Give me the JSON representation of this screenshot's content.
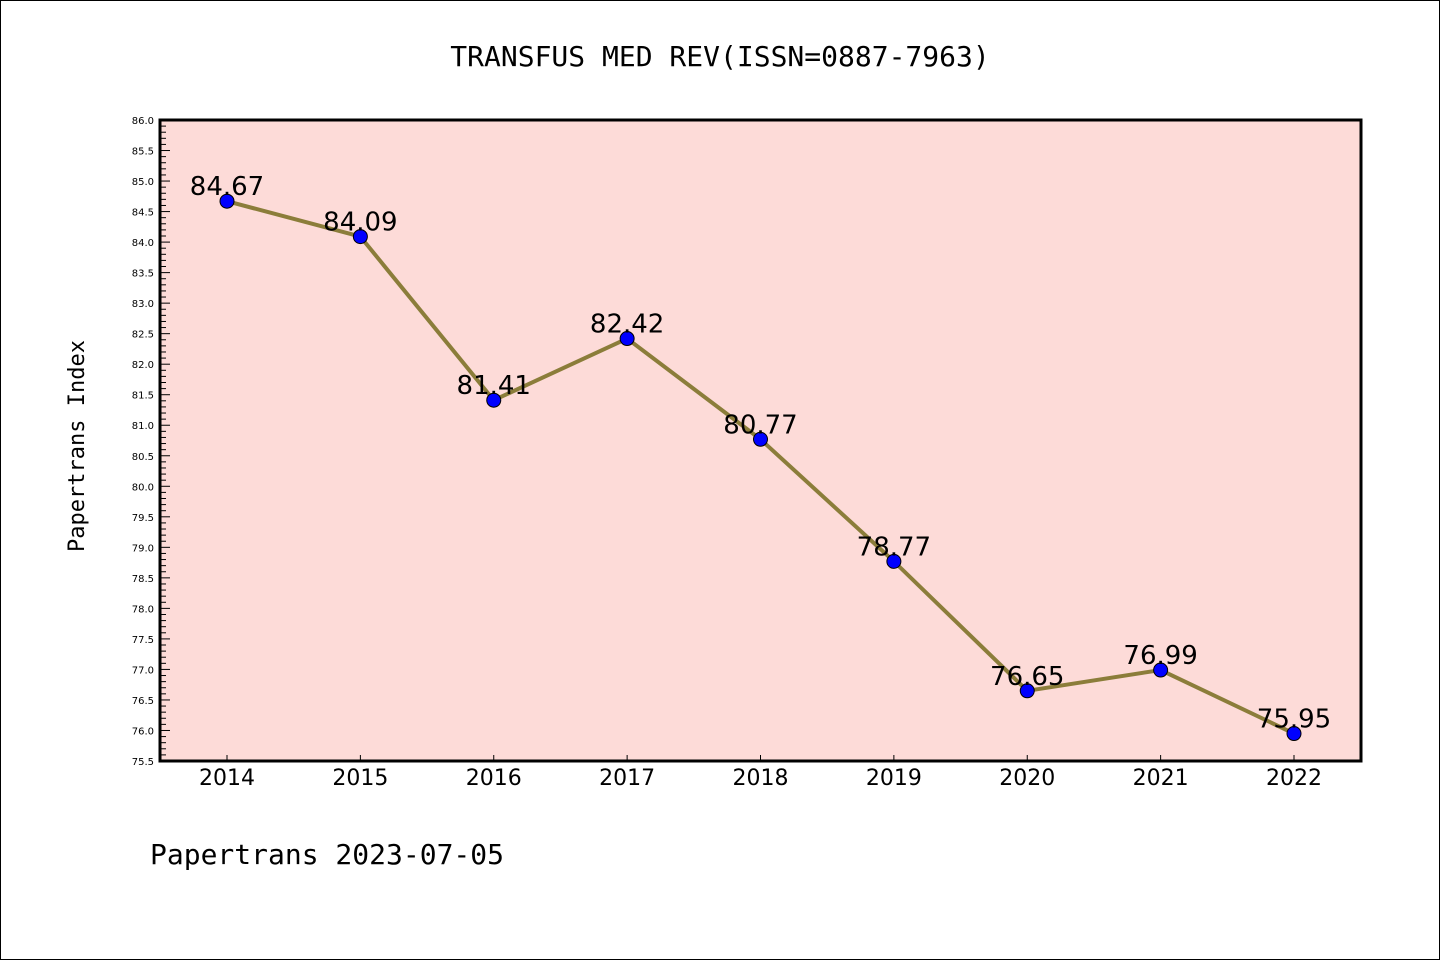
{
  "chart_data": {
    "type": "line",
    "title": "TRANSFUS MED REV(ISSN=0887-7963)",
    "xlabel": "",
    "ylabel": "Papertrans Index",
    "categories": [
      "2014",
      "2015",
      "2016",
      "2017",
      "2018",
      "2019",
      "2020",
      "2021",
      "2022"
    ],
    "values": [
      84.67,
      84.09,
      81.41,
      82.42,
      80.77,
      78.77,
      76.65,
      76.99,
      75.95
    ],
    "data_labels": [
      "84.67",
      "84.09",
      "81.41",
      "82.42",
      "80.77",
      "78.77",
      "76.65",
      "76.99",
      "75.95"
    ],
    "ylim": [
      75.5,
      86.0
    ],
    "yticks": [
      "75.5",
      "76.0",
      "76.5",
      "77.0",
      "77.5",
      "78.0",
      "78.5",
      "79.0",
      "79.5",
      "80.0",
      "80.5",
      "81.0",
      "81.5",
      "82.0",
      "82.5",
      "83.0",
      "83.5",
      "84.0",
      "84.5",
      "85.0",
      "85.5",
      "86.0"
    ],
    "grid": false,
    "colors": {
      "plot_background": "#fddbd8",
      "line": "#8b7d3a",
      "marker": "#0000ff"
    }
  },
  "footer": "Papertrans 2023-07-05"
}
